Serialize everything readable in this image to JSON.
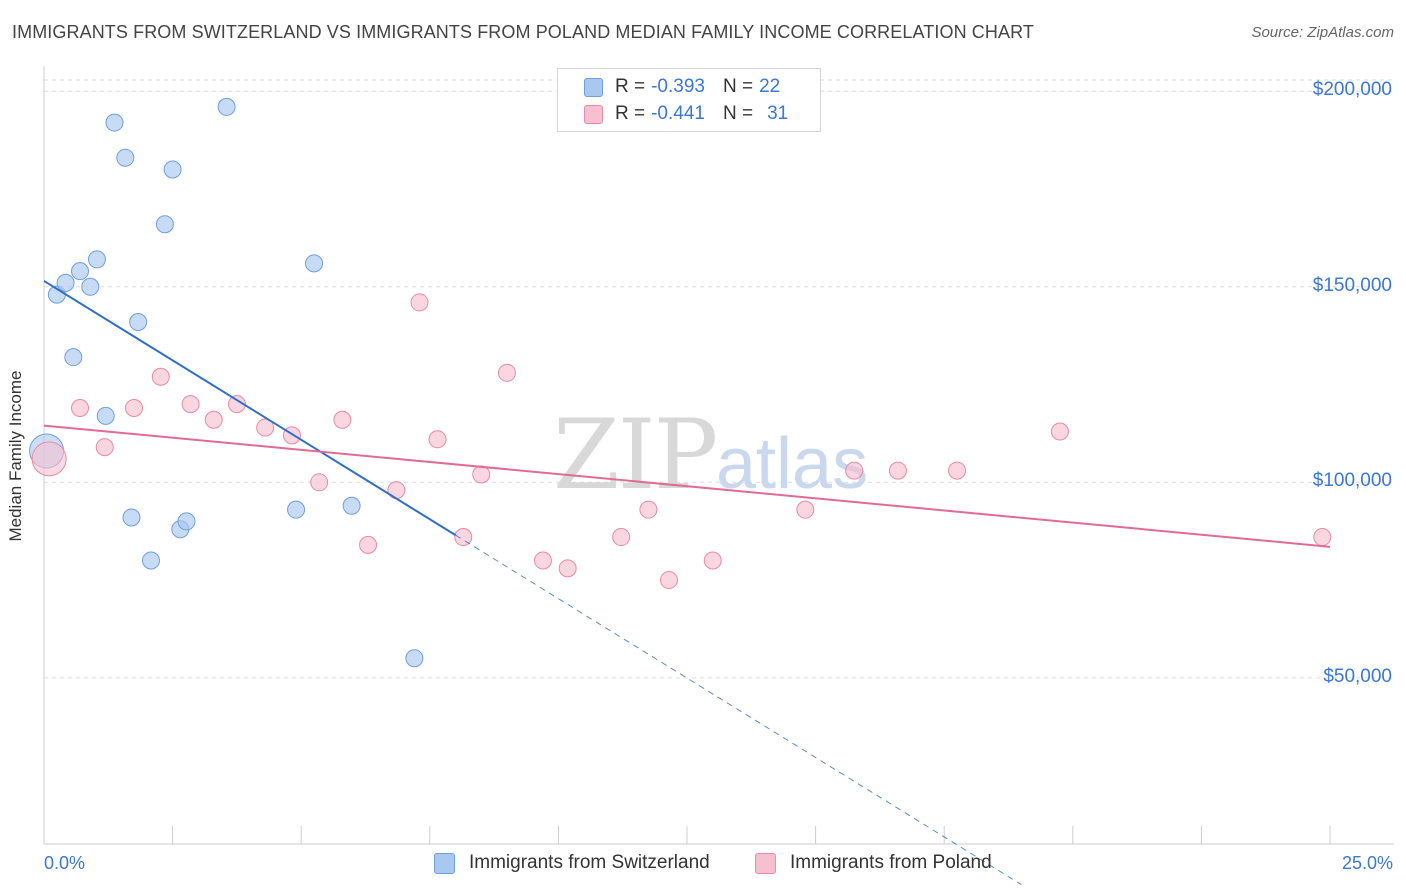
{
  "title": "IMMIGRANTS FROM SWITZERLAND VS IMMIGRANTS FROM POLAND MEDIAN FAMILY INCOME CORRELATION CHART",
  "source": "Source: ZipAtlas.com",
  "watermark": {
    "part1": "ZIP",
    "part2": "atlas"
  },
  "legend_top": [
    {
      "r_label": "R =",
      "r_value": "-0.393",
      "n_label": "N =",
      "n_value": "22",
      "color": "#a9c8f0",
      "border": "#6f9fdc"
    },
    {
      "r_label": "R =",
      "r_value": "-0.441",
      "n_label": "N =",
      "n_value": "31",
      "color": "#f7c0d0",
      "border": "#e98aa8"
    }
  ],
  "chart_data": {
    "type": "scatter",
    "title": "IMMIGRANTS FROM SWITZERLAND VS IMMIGRANTS FROM POLAND MEDIAN FAMILY INCOME CORRELATION CHART",
    "xlabel": "",
    "ylabel": "Median Family Income",
    "xlim": [
      0,
      25
    ],
    "ylim": [
      7500,
      208000
    ],
    "x_tick_labels": [
      "0.0%",
      "25.0%"
    ],
    "y_ticks": [
      {
        "value": 50000,
        "label": "$50,000"
      },
      {
        "value": 100000,
        "label": "$100,000"
      },
      {
        "value": 150000,
        "label": "$150,000"
      },
      {
        "value": 200000,
        "label": "$200,000"
      }
    ],
    "grid": true,
    "legend_position": "bottom",
    "series": [
      {
        "name": "Immigrants from Switzerland",
        "color": "#a9c8f0",
        "edge": "#6f9fdc",
        "line_color": "#2f6fc9",
        "points": [
          {
            "x": 0.05,
            "y": 108000,
            "big": true
          },
          {
            "x": 0.25,
            "y": 148000
          },
          {
            "x": 0.42,
            "y": 151000
          },
          {
            "x": 0.57,
            "y": 132000
          },
          {
            "x": 0.7,
            "y": 154000
          },
          {
            "x": 0.9,
            "y": 150000
          },
          {
            "x": 1.03,
            "y": 157000
          },
          {
            "x": 1.2,
            "y": 117000
          },
          {
            "x": 1.37,
            "y": 192000
          },
          {
            "x": 1.58,
            "y": 183000
          },
          {
            "x": 1.7,
            "y": 91000
          },
          {
            "x": 1.83,
            "y": 141000
          },
          {
            "x": 2.08,
            "y": 80000
          },
          {
            "x": 2.35,
            "y": 166000
          },
          {
            "x": 2.5,
            "y": 180000
          },
          {
            "x": 2.65,
            "y": 88000
          },
          {
            "x": 2.77,
            "y": 90000
          },
          {
            "x": 3.55,
            "y": 196000
          },
          {
            "x": 4.9,
            "y": 93000
          },
          {
            "x": 5.25,
            "y": 156000
          },
          {
            "x": 5.98,
            "y": 94000
          },
          {
            "x": 7.2,
            "y": 55000
          }
        ],
        "trend": {
          "x0": 0,
          "y0": 151500,
          "x1": 8.0,
          "y1": 86500,
          "dash_to_x": 19.0
        }
      },
      {
        "name": "Immigrants from Poland",
        "color": "#f7c0d0",
        "edge": "#e98aa8",
        "line_color": "#e26b94",
        "points": [
          {
            "x": 0.1,
            "y": 106000,
            "big": true
          },
          {
            "x": 0.7,
            "y": 119000
          },
          {
            "x": 1.18,
            "y": 109000
          },
          {
            "x": 1.75,
            "y": 119000
          },
          {
            "x": 2.27,
            "y": 127000
          },
          {
            "x": 2.85,
            "y": 120000
          },
          {
            "x": 3.3,
            "y": 116000
          },
          {
            "x": 3.75,
            "y": 120000
          },
          {
            "x": 4.3,
            "y": 114000
          },
          {
            "x": 4.82,
            "y": 112000
          },
          {
            "x": 5.35,
            "y": 100000
          },
          {
            "x": 5.8,
            "y": 116000
          },
          {
            "x": 6.3,
            "y": 84000
          },
          {
            "x": 6.85,
            "y": 98000
          },
          {
            "x": 7.3,
            "y": 146000
          },
          {
            "x": 7.65,
            "y": 111000
          },
          {
            "x": 8.15,
            "y": 86000
          },
          {
            "x": 8.5,
            "y": 102000
          },
          {
            "x": 9.0,
            "y": 128000
          },
          {
            "x": 9.7,
            "y": 80000
          },
          {
            "x": 10.18,
            "y": 78000
          },
          {
            "x": 11.22,
            "y": 86000
          },
          {
            "x": 11.75,
            "y": 93000
          },
          {
            "x": 12.15,
            "y": 75000
          },
          {
            "x": 13.0,
            "y": 80000
          },
          {
            "x": 14.8,
            "y": 93000
          },
          {
            "x": 15.75,
            "y": 103000
          },
          {
            "x": 16.6,
            "y": 103000
          },
          {
            "x": 17.75,
            "y": 103000
          },
          {
            "x": 19.75,
            "y": 113000
          },
          {
            "x": 24.85,
            "y": 86000
          }
        ],
        "trend": {
          "x0": 0,
          "y0": 114500,
          "x1": 25.0,
          "y1": 83500
        }
      }
    ]
  }
}
